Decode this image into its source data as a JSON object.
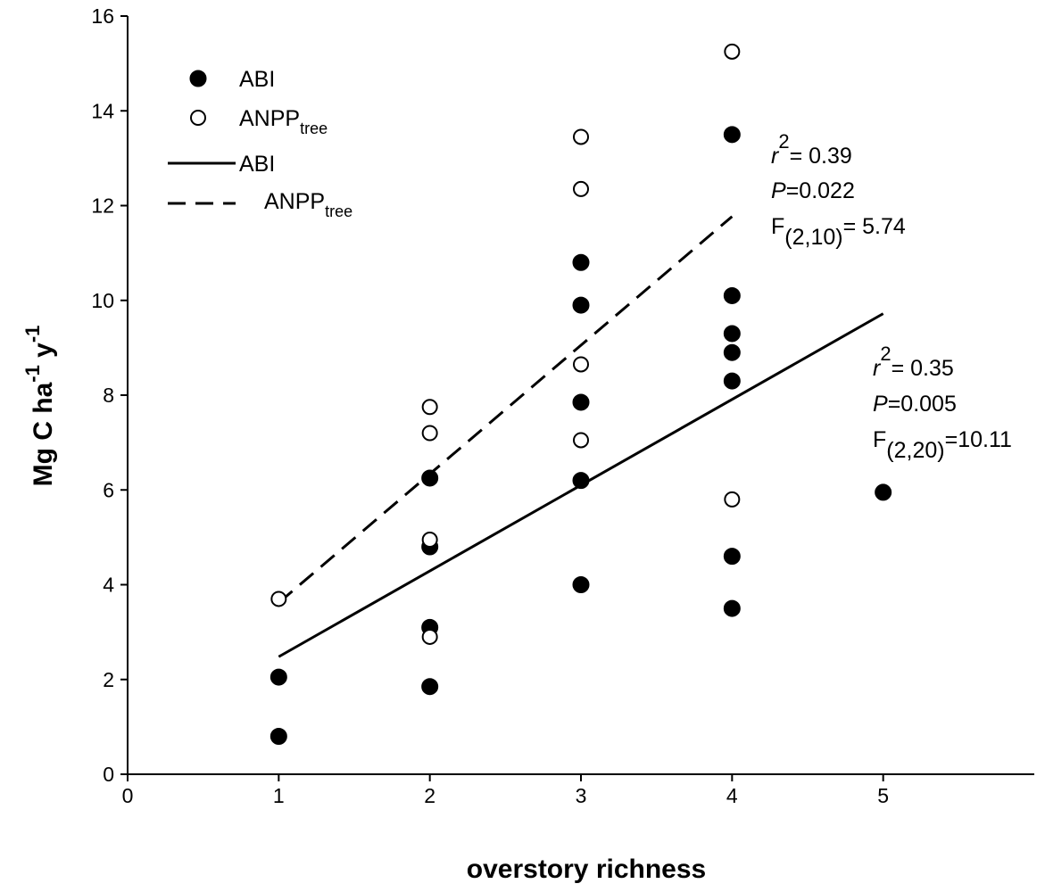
{
  "chart_data": {
    "type": "scatter",
    "title": "",
    "xlabel": "overstory richness",
    "ylabel": {
      "main": "Mg C ha",
      "exp1": "-1",
      "mid": " y",
      "exp2": "-1"
    },
    "xlim": [
      0,
      6
    ],
    "ylim": [
      0,
      16
    ],
    "xticks": [
      0,
      1,
      2,
      3,
      4,
      5
    ],
    "yticks": [
      0,
      2,
      4,
      6,
      8,
      10,
      12,
      14,
      16
    ],
    "series": [
      {
        "name": "ABI",
        "marker": "filled-circle",
        "points": [
          [
            1,
            2.05
          ],
          [
            1,
            0.8
          ],
          [
            2,
            6.25
          ],
          [
            2,
            4.8
          ],
          [
            2,
            3.1
          ],
          [
            2,
            1.85
          ],
          [
            3,
            10.8
          ],
          [
            3,
            9.9
          ],
          [
            3,
            7.85
          ],
          [
            3,
            6.2
          ],
          [
            3,
            4.0
          ],
          [
            4,
            13.5
          ],
          [
            4,
            10.1
          ],
          [
            4,
            9.3
          ],
          [
            4,
            8.9
          ],
          [
            4,
            8.3
          ],
          [
            4,
            4.6
          ],
          [
            4,
            3.5
          ],
          [
            5,
            5.95
          ]
        ]
      },
      {
        "name": "ANPPtree",
        "marker": "open-circle",
        "points": [
          [
            1,
            3.7
          ],
          [
            2,
            7.75
          ],
          [
            2,
            7.2
          ],
          [
            2,
            4.95
          ],
          [
            2,
            2.9
          ],
          [
            3,
            13.45
          ],
          [
            3,
            12.35
          ],
          [
            3,
            8.65
          ],
          [
            3,
            7.05
          ],
          [
            4,
            15.25
          ],
          [
            4,
            5.8
          ]
        ]
      }
    ],
    "fits": [
      {
        "name": "ABI",
        "style": "solid",
        "x": [
          1,
          5
        ],
        "y": [
          2.48,
          9.72
        ]
      },
      {
        "name": "ANPPtree",
        "style": "dashed",
        "x": [
          1,
          4
        ],
        "y": [
          3.62,
          11.77
        ]
      }
    ],
    "legend": {
      "position": "top-left",
      "entries": [
        {
          "label": "ABI",
          "sub": "",
          "kind": "filled-circle"
        },
        {
          "label": "ANPP",
          "sub": "tree",
          "kind": "open-circle"
        },
        {
          "label": "ABI",
          "sub": "",
          "kind": "solid-line"
        },
        {
          "label": "ANPP",
          "sub": "tree",
          "kind": "dashed-line"
        }
      ]
    },
    "annotations": [
      {
        "name": "anpp-stats",
        "r_label": "r",
        "r_exp": "2",
        "r_value": "= 0.39",
        "p_label": "P",
        "p_value": "=0.022",
        "f_label": "F",
        "f_sub": "(2,10)",
        "f_value": "= 5.74"
      },
      {
        "name": "abi-stats",
        "r_label": "r",
        "r_exp": "2",
        "r_value": "= 0.35",
        "p_label": "P",
        "p_value": "=0.005",
        "f_label": "F",
        "f_sub": "(2,20)",
        "f_value": "=10.11"
      }
    ]
  }
}
